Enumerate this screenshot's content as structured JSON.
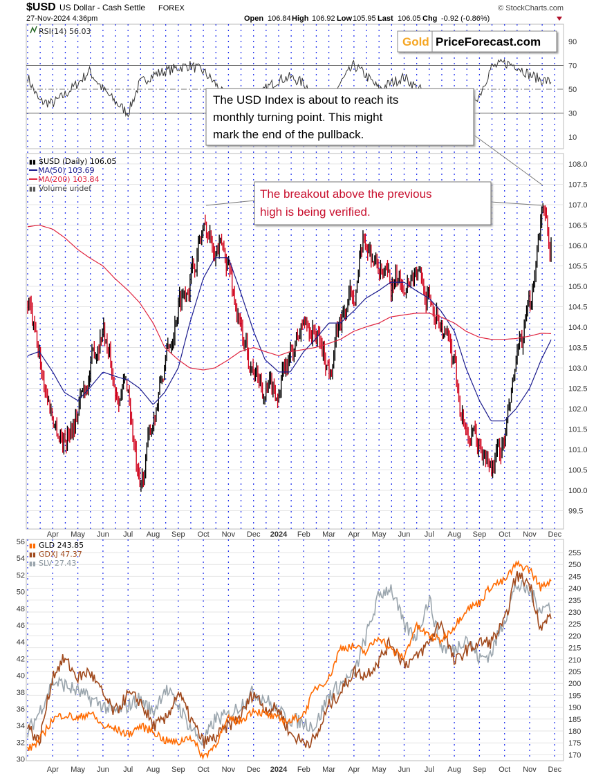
{
  "header": {
    "symbol": "$USD",
    "name": "US Dollar - Cash Settle",
    "exchange": "FOREX",
    "datetime": "27-Nov-2024 4:36pm",
    "copyright": "© StockCharts.com",
    "open_label": "Open",
    "open": "106.84",
    "high_label": "High",
    "high": "106.92",
    "low_label": "Low",
    "low": "105.95",
    "last_label": "Last",
    "last": "106.05",
    "chg_label": "Chg",
    "chg": "-0.92 (-0.86%)",
    "chg_direction": "down"
  },
  "logo": {
    "gold": "Gold",
    "rest": "PriceForecast.com",
    "gold_color": "#f5a623"
  },
  "annotations": {
    "rsi_note": [
      "The USD Index is about to reach its",
      "monthly turning point. This might",
      "mark the end of the pullback."
    ],
    "breakout_note": [
      "The breakout above the previous",
      "high is being verified."
    ],
    "breakout_color": "#c8102e"
  },
  "chart_data": [
    {
      "type": "line",
      "panel": "RSI",
      "legend": "RSI(14) 56.03",
      "y_ticks": [
        "90",
        "70",
        "50",
        "30",
        "10"
      ],
      "ylim": [
        0,
        100
      ],
      "reference_lines": [
        70,
        50,
        30
      ],
      "x": [
        "2023-03-01",
        "2023-03-15",
        "2023-04-01",
        "2023-04-15",
        "2023-05-01",
        "2023-05-15",
        "2023-06-01",
        "2023-06-15",
        "2023-07-01",
        "2023-07-15",
        "2023-08-01",
        "2023-08-15",
        "2023-09-01",
        "2023-09-15",
        "2023-10-01",
        "2023-10-15",
        "2023-11-01",
        "2023-11-15",
        "2023-12-01",
        "2023-12-15",
        "2024-01-01",
        "2024-01-15",
        "2024-02-01",
        "2024-02-15",
        "2024-03-01",
        "2024-03-15",
        "2024-04-01",
        "2024-04-15",
        "2024-05-01",
        "2024-05-15",
        "2024-06-01",
        "2024-06-15",
        "2024-07-01",
        "2024-07-15",
        "2024-08-01",
        "2024-08-15",
        "2024-09-01",
        "2024-09-15",
        "2024-10-01",
        "2024-10-15",
        "2024-11-01",
        "2024-11-15",
        "2024-11-27"
      ],
      "series": [
        {
          "name": "RSI(14)",
          "color": "#222222",
          "values": [
            60,
            40,
            38,
            45,
            55,
            65,
            50,
            40,
            30,
            55,
            62,
            65,
            68,
            70,
            65,
            55,
            40,
            45,
            35,
            50,
            58,
            60,
            55,
            45,
            40,
            55,
            70,
            62,
            50,
            55,
            60,
            52,
            45,
            40,
            35,
            38,
            45,
            68,
            72,
            70,
            62,
            58,
            56.03
          ]
        }
      ]
    },
    {
      "type": "candlestick",
      "panel": "price",
      "legend": [
        "$USD (Daily) 106.05",
        "MA(50) 103.69",
        "MA(200) 103.84",
        "Volume undef"
      ],
      "ylim": [
        99.2,
        108.3
      ],
      "y_ticks": [
        "99.5",
        "100.0",
        "100.5",
        "101.0",
        "101.5",
        "102.0",
        "102.5",
        "103.0",
        "103.5",
        "104.0",
        "104.5",
        "105.0",
        "105.5",
        "106.0",
        "106.5",
        "107.0",
        "107.5",
        "108.0"
      ],
      "x_ticks": [
        "Apr",
        "May",
        "Jun",
        "Jul",
        "Aug",
        "Sep",
        "Oct",
        "Nov",
        "Dec",
        "2024",
        "Feb",
        "Mar",
        "Apr",
        "May",
        "Jun",
        "Jul",
        "Aug",
        "Sep",
        "Oct",
        "Nov",
        "Dec"
      ],
      "grid": true,
      "up_color": "#000000",
      "down_color": "#d0021b",
      "x": [
        "2023-03-01",
        "2023-03-15",
        "2023-04-01",
        "2023-04-15",
        "2023-05-01",
        "2023-05-15",
        "2023-06-01",
        "2023-06-15",
        "2023-07-01",
        "2023-07-15",
        "2023-08-01",
        "2023-08-15",
        "2023-09-01",
        "2023-09-15",
        "2023-10-01",
        "2023-10-15",
        "2023-11-01",
        "2023-11-15",
        "2023-12-01",
        "2023-12-15",
        "2024-01-01",
        "2024-01-15",
        "2024-02-01",
        "2024-02-15",
        "2024-03-01",
        "2024-03-15",
        "2024-04-01",
        "2024-04-15",
        "2024-05-01",
        "2024-05-15",
        "2024-06-01",
        "2024-06-15",
        "2024-07-01",
        "2024-07-15",
        "2024-08-01",
        "2024-08-15",
        "2024-09-01",
        "2024-09-15",
        "2024-10-01",
        "2024-10-15",
        "2024-11-01",
        "2024-11-15",
        "2024-11-27"
      ],
      "series": [
        {
          "name": "$USD (Daily)",
          "color": "#000000",
          "values": [
            104.6,
            103.2,
            101.8,
            101.2,
            102.0,
            102.9,
            104.1,
            102.5,
            102.5,
            99.8,
            101.8,
            103.0,
            104.6,
            105.2,
            106.4,
            106.1,
            105.6,
            103.9,
            103.0,
            102.4,
            102.4,
            103.2,
            104.1,
            103.9,
            103.0,
            104.1,
            104.9,
            106.1,
            105.4,
            104.9,
            105.2,
            105.4,
            104.7,
            104.2,
            102.9,
            101.5,
            101.0,
            100.5,
            101.2,
            103.0,
            104.4,
            106.9,
            106.05
          ]
        },
        {
          "name": "MA(50)",
          "color": "#1a1a8c",
          "values": [
            103.3,
            103.4,
            102.9,
            102.4,
            102.2,
            102.5,
            102.9,
            102.8,
            102.7,
            102.5,
            102.1,
            102.4,
            103.0,
            104.1,
            105.2,
            105.7,
            105.7,
            104.9,
            103.9,
            103.2,
            102.9,
            102.9,
            103.4,
            103.7,
            104.1,
            104.1,
            104.4,
            104.7,
            104.9,
            105.1,
            105.1,
            104.9,
            104.7,
            104.4,
            103.9,
            103.0,
            102.2,
            101.7,
            101.7,
            102.0,
            102.5,
            103.2,
            103.69
          ]
        },
        {
          "name": "MA(200)",
          "color": "#e0253f",
          "values": [
            106.46,
            106.5,
            106.4,
            106.2,
            105.9,
            105.7,
            105.5,
            105.2,
            104.9,
            104.6,
            104.1,
            103.5,
            103.2,
            103.0,
            102.95,
            103.0,
            103.2,
            103.4,
            103.5,
            103.4,
            103.3,
            103.4,
            103.45,
            103.5,
            103.6,
            103.7,
            103.9,
            104.0,
            104.1,
            104.25,
            104.3,
            104.34,
            104.34,
            104.25,
            104.1,
            103.9,
            103.75,
            103.7,
            103.7,
            103.72,
            103.78,
            103.85,
            103.84
          ]
        }
      ]
    },
    {
      "type": "line",
      "panel": "comparison",
      "legend": [
        "GLD 243.85",
        "GDXJ 47.37",
        "SLV 27.43"
      ],
      "y_left_ticks": [
        "30",
        "32",
        "34",
        "36",
        "38",
        "40",
        "42",
        "44",
        "46",
        "48",
        "50",
        "52",
        "54",
        "56"
      ],
      "y_right_ticks": [
        "170",
        "175",
        "180",
        "185",
        "190",
        "195",
        "200",
        "205",
        "210",
        "215",
        "220",
        "225",
        "230",
        "235",
        "240",
        "245",
        "250",
        "255"
      ],
      "ylim_left": [
        29.5,
        56.2
      ],
      "ylim_right": [
        167,
        256
      ],
      "x_ticks": [
        "Apr",
        "May",
        "Jun",
        "Jul",
        "Aug",
        "Sep",
        "Oct",
        "Nov",
        "Dec",
        "2024",
        "Feb",
        "Mar",
        "Apr",
        "May",
        "Jun",
        "Jul",
        "Aug",
        "Sep",
        "Oct",
        "Nov",
        "Dec"
      ],
      "series": [
        {
          "name": "GLD",
          "color": "#ff6a00",
          "axis": "right",
          "values": [
            172,
            176,
            185,
            187,
            185,
            188,
            182,
            181,
            178.5,
            182,
            180,
            176,
            175,
            178,
            169,
            174,
            185,
            184,
            189,
            187,
            185,
            184,
            187,
            198,
            202,
            215,
            215.5,
            213,
            220,
            214,
            211,
            224,
            220,
            218,
            224,
            231,
            234,
            241,
            243,
            250,
            248,
            240,
            243.85
          ]
        },
        {
          "name": "GDXJ",
          "color": "#a0491c",
          "axis": "left",
          "values": [
            34,
            32,
            40,
            42,
            39.7,
            40.5,
            37.7,
            35.5,
            37.7,
            37,
            34,
            34.5,
            38,
            35,
            32,
            32.5,
            34,
            35,
            38,
            36,
            36,
            33,
            32,
            32.3,
            36.4,
            38,
            40.5,
            40,
            41.8,
            44,
            41.4,
            42,
            44,
            46.5,
            41.5,
            43,
            43.9,
            44,
            46.3,
            52,
            51,
            45.5,
            47.37
          ]
        },
        {
          "name": "SLV",
          "color": "#9aa5ad",
          "axis": "hidden",
          "values": [
            20,
            21.2,
            23,
            22.8,
            22.4,
            22,
            21.6,
            21.2,
            21.6,
            22,
            21.2,
            22.6,
            21.6,
            20.4,
            19.4,
            20.8,
            21,
            21.6,
            22.4,
            22,
            21.2,
            20.8,
            20.6,
            20.4,
            22.2,
            22.8,
            23.4,
            25.5,
            28,
            28.5,
            26.2,
            25.6,
            27.8,
            25,
            24.8,
            25.6,
            24.3,
            24.6,
            26.6,
            28.6,
            28.2,
            27.2,
            27.43
          ]
        }
      ]
    }
  ]
}
